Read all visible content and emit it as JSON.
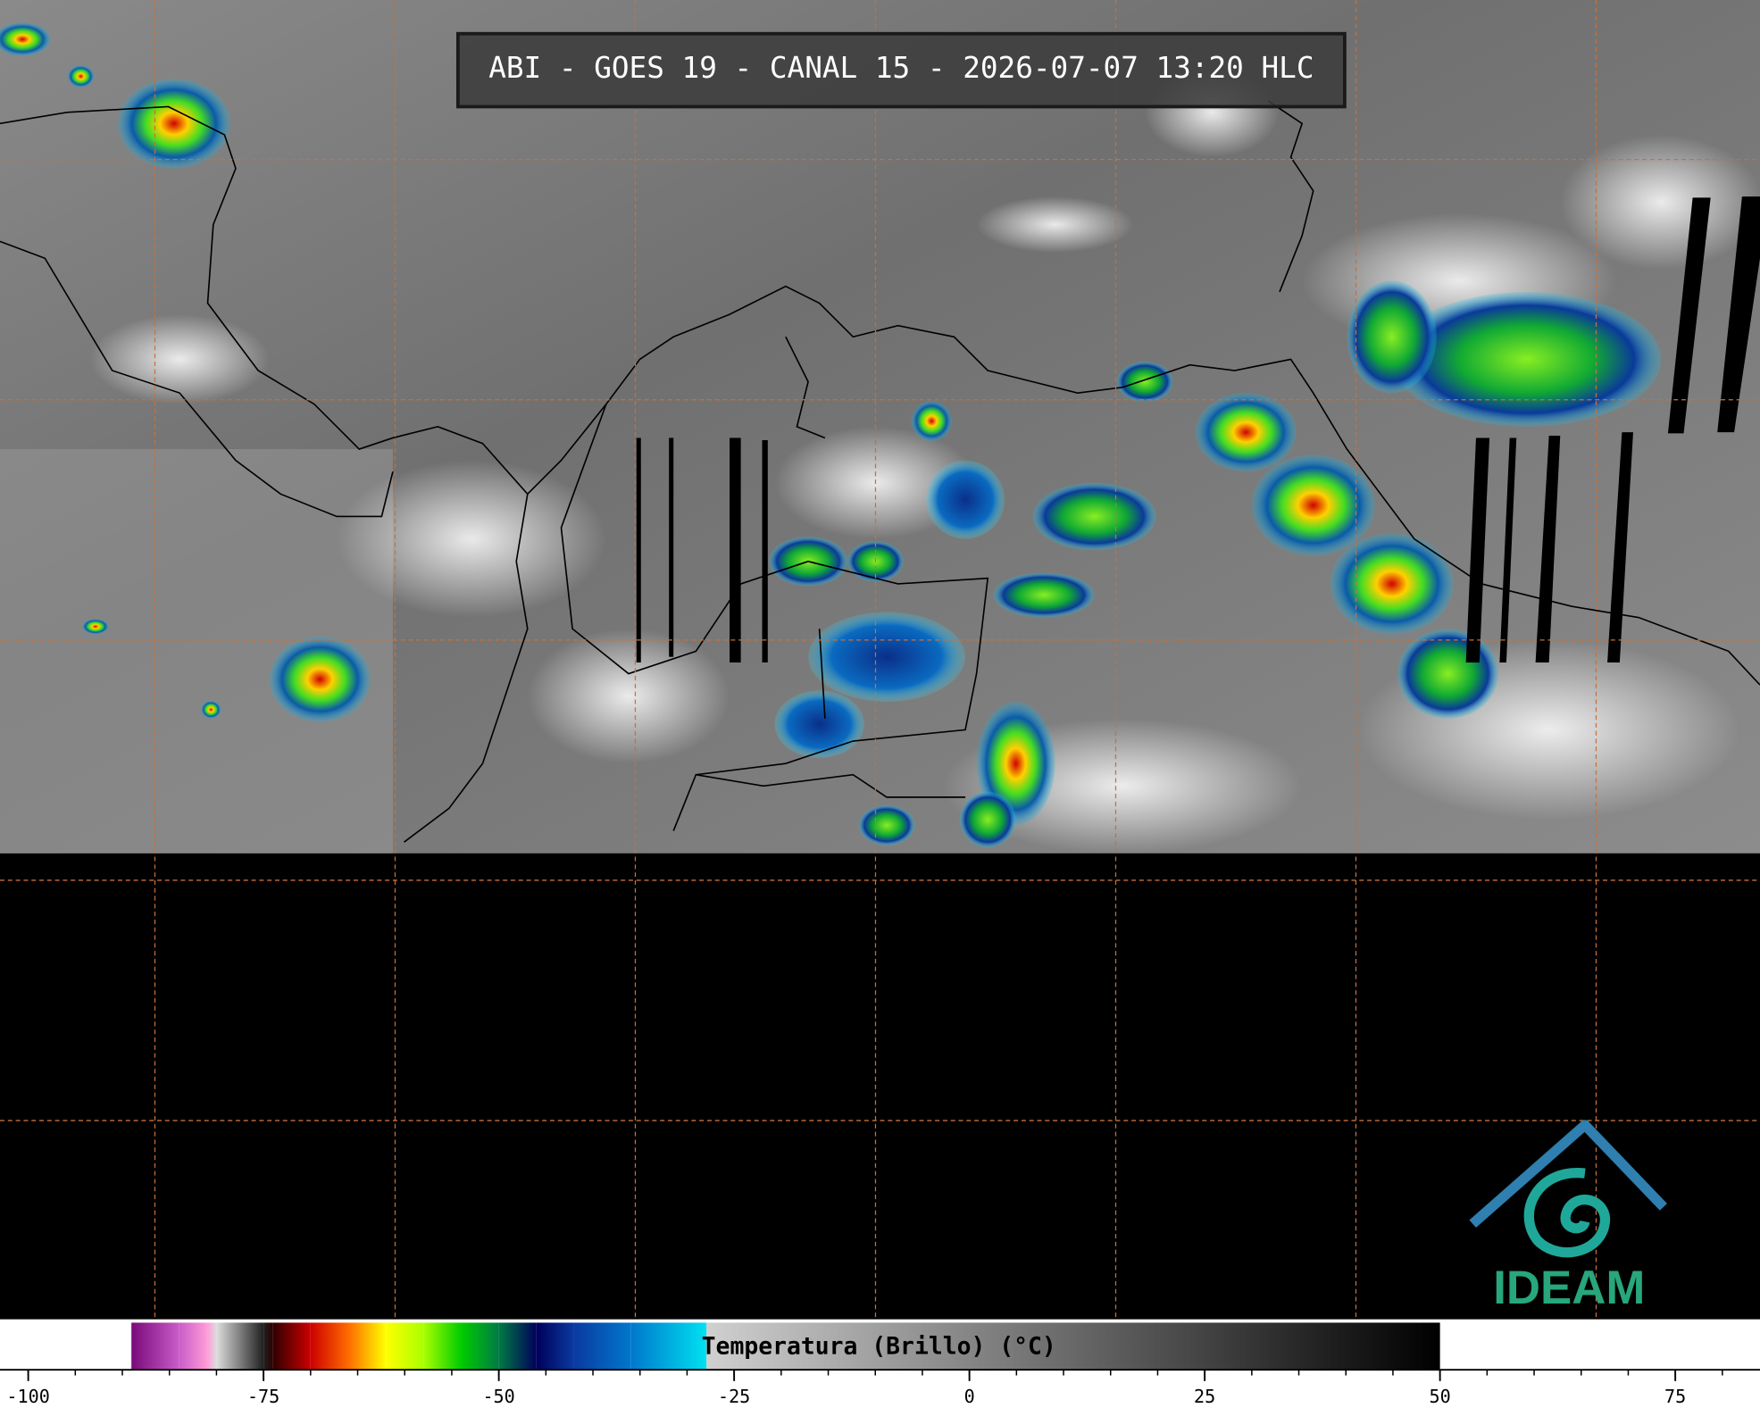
{
  "header": {
    "title": "ABI - GOES 19 - CANAL 15 - 2026-07-07 13:20 HLC"
  },
  "colorbar": {
    "label": "Temperatura (Brillo) (°C)",
    "lim": [
      -103,
      84
    ],
    "ticks": [
      -100,
      -75,
      -50,
      -25,
      0,
      25,
      50,
      75
    ],
    "minor_tick_step": 5,
    "stops": [
      {
        "value": -103,
        "color": "#ffffff"
      },
      {
        "value": -89.1,
        "color": "#ffffff"
      },
      {
        "value": -89,
        "color": "#7a0a7a"
      },
      {
        "value": -84,
        "color": "#c85cc8"
      },
      {
        "value": -81,
        "color": "#ff9ad8"
      },
      {
        "value": -80,
        "color": "#dddddd"
      },
      {
        "value": -75,
        "color": "#202020"
      },
      {
        "value": -74,
        "color": "#300000"
      },
      {
        "value": -70,
        "color": "#cc0000"
      },
      {
        "value": -66,
        "color": "#ff6a00"
      },
      {
        "value": -62,
        "color": "#ffff00"
      },
      {
        "value": -58,
        "color": "#aaff00"
      },
      {
        "value": -54,
        "color": "#00cc00"
      },
      {
        "value": -50,
        "color": "#007a44"
      },
      {
        "value": -46,
        "color": "#00005a"
      },
      {
        "value": -42,
        "color": "#0a3aa0"
      },
      {
        "value": -36,
        "color": "#0077cc"
      },
      {
        "value": -28,
        "color": "#00e0f0"
      },
      {
        "value": -27.9,
        "color": "#d0d0d0"
      },
      {
        "value": 50,
        "color": "#000000"
      }
    ]
  },
  "logo": {
    "text": "IDEAM"
  }
}
